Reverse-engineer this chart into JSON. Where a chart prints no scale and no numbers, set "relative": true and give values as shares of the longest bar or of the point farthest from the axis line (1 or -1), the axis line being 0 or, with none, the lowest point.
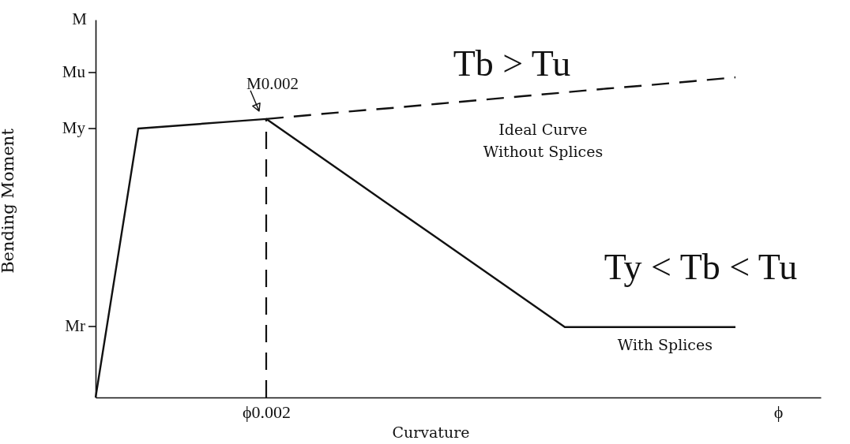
{
  "chart_data": {
    "type": "line",
    "relative": true,
    "xlabel": "Curvature",
    "ylabel": "Bending Moment",
    "categories": [
      null,
      null,
      null,
      null,
      "ϕ0.002",
      null,
      null,
      null,
      null,
      null,
      null,
      null,
      null,
      null,
      null,
      null,
      "ϕ",
      null
    ],
    "series": [
      {
        "name": "With Splices",
        "color": "#111111",
        "line_style": "solid",
        "values": [
          0,
          0.84,
          0.85,
          0.86,
          0.87,
          0.777,
          0.684,
          0.591,
          0.499,
          0.406,
          0.313,
          0.22,
          0.22,
          0.22,
          0.22,
          0.22,
          null,
          null
        ]
      },
      {
        "name": "Ideal Curve Without Splices",
        "color": "#111111",
        "line_style": "dashed",
        "values": [
          null,
          null,
          null,
          null,
          0.87,
          0.882,
          0.894,
          0.905,
          0.917,
          0.929,
          0.941,
          0.953,
          0.965,
          0.976,
          0.988,
          1,
          null,
          null
        ]
      }
    ],
    "ref_lines": [
      {
        "axis": "x",
        "value": "ϕ0.002",
        "color": "#111111",
        "line_style": "dashed"
      }
    ],
    "annotations": [
      "M",
      "Mu",
      "My",
      "Mr",
      {
        "text": "M0.002",
        "x": "ϕ0.002",
        "y": 0.87
      },
      "Tb > Tu",
      "Ty < Tb < Tu"
    ]
  }
}
